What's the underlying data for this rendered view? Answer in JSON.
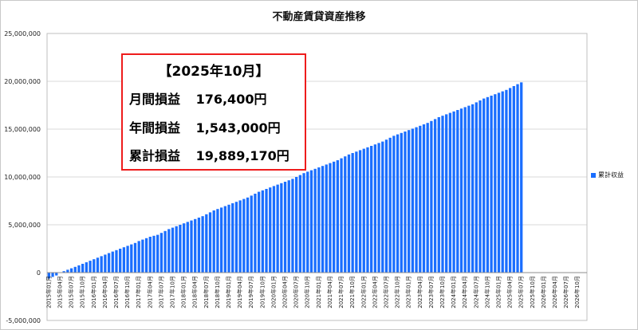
{
  "chart_data": {
    "type": "bar",
    "title": "不動産賃貸資産推移",
    "ylim": [
      -5000000,
      25000000
    ],
    "y_ticks": [
      "25,000,000",
      "20,000,000",
      "15,000,000",
      "10,000,000",
      "5,000,000",
      "0",
      "-5,000,000"
    ],
    "y_tick_values": [
      25000000,
      20000000,
      15000000,
      10000000,
      5000000,
      0,
      -5000000
    ],
    "x_tick_labels": [
      "2015年01月",
      "2015年04月",
      "2015年07月",
      "2015年10月",
      "2016年01月",
      "2016年04月",
      "2016年07月",
      "2016年10月",
      "2017年01月",
      "2017年04月",
      "2017年07月",
      "2017年10月",
      "2018年01月",
      "2018年04月",
      "2018年07月",
      "2018年10月",
      "2019年01月",
      "2019年04月",
      "2019年07月",
      "2019年10月",
      "2020年01月",
      "2020年04月",
      "2020年07月",
      "2020年10月",
      "2021年01月",
      "2021年04月",
      "2021年07月",
      "2021年10月",
      "2022年01月",
      "2022年04月",
      "2022年07月",
      "2022年10月",
      "2023年01月",
      "2023年04月",
      "2023年07月",
      "2023年10月",
      "2024年01月",
      "2024年04月",
      "2024年07月",
      "2024年10月",
      "2025年01月",
      "2025年04月",
      "2025年07月",
      "2025年10月",
      "2026年01月",
      "2026年04月",
      "2026年07月",
      "2026年10月"
    ],
    "x_start": "2015年01月",
    "x_end": "2026年12月",
    "grid": true,
    "legend_position": "right",
    "series": [
      {
        "name": "累計収益",
        "color": "#1a6eff",
        "values": [
          -620000,
          -450000,
          -300000,
          0,
          150000,
          300000,
          450000,
          600000,
          760000,
          920000,
          1080000,
          1240000,
          1400000,
          1560000,
          1720000,
          1880000,
          2040000,
          2200000,
          2350000,
          2500000,
          2650000,
          2800000,
          2950000,
          3100000,
          3300000,
          3450000,
          3600000,
          3750000,
          3850000,
          3950000,
          4150000,
          4350000,
          4550000,
          4700000,
          4850000,
          5000000,
          5150000,
          5300000,
          5450000,
          5600000,
          5750000,
          5900000,
          6100000,
          6300000,
          6500000,
          6650000,
          6800000,
          6950000,
          7100000,
          7250000,
          7400000,
          7550000,
          7700000,
          7850000,
          8050000,
          8250000,
          8450000,
          8600000,
          8750000,
          8900000,
          9050000,
          9200000,
          9350000,
          9500000,
          9650000,
          9800000,
          10000000,
          10200000,
          10400000,
          10550000,
          10700000,
          10850000,
          11000000,
          11150000,
          11300000,
          11450000,
          11600000,
          11750000,
          11950000,
          12150000,
          12350000,
          12500000,
          12650000,
          12800000,
          12950000,
          13100000,
          13250000,
          13400000,
          13550000,
          13700000,
          13900000,
          14100000,
          14300000,
          14450000,
          14600000,
          14750000,
          14900000,
          15050000,
          15200000,
          15350000,
          15500000,
          15650000,
          15850000,
          16050000,
          16250000,
          16400000,
          16550000,
          16700000,
          16850000,
          17000000,
          17150000,
          17300000,
          17450000,
          17600000,
          17800000,
          18000000,
          18200000,
          18350000,
          18500000,
          18650000,
          18800000,
          18950000,
          19100000,
          19300000,
          19500000,
          19700000,
          19889170
        ]
      }
    ]
  },
  "info": {
    "heading": "【2025年10月】",
    "monthly_label": "月間損益",
    "monthly_value": "176,400円",
    "yearly_label": "年間損益",
    "yearly_value": "1,543,000円",
    "cumulative_label": "累計損益",
    "cumulative_value": "19,889,170円"
  }
}
